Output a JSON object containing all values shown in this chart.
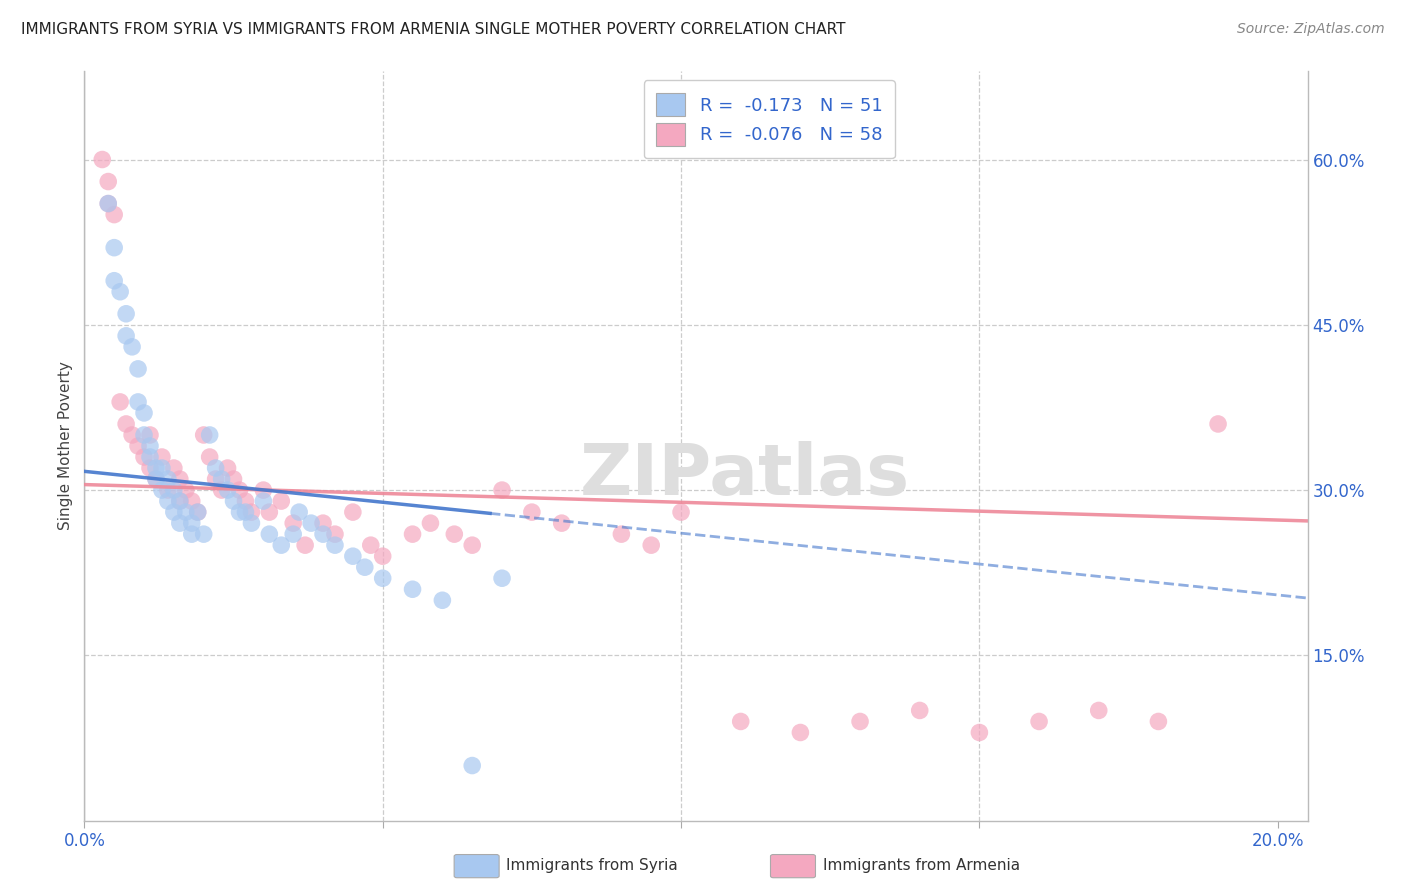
{
  "title": "IMMIGRANTS FROM SYRIA VS IMMIGRANTS FROM ARMENIA SINGLE MOTHER POVERTY CORRELATION CHART",
  "source": "Source: ZipAtlas.com",
  "ylabel": "Single Mother Poverty",
  "right_ytick_vals": [
    0.6,
    0.45,
    0.3,
    0.15
  ],
  "right_ytick_labels": [
    "60.0%",
    "45.0%",
    "30.0%",
    "15.0%"
  ],
  "xtick_vals": [
    0.0,
    0.05,
    0.1,
    0.15,
    0.2
  ],
  "xtick_labels": [
    "0.0%",
    "",
    "",
    "",
    "20.0%"
  ],
  "xlim": [
    0.0,
    0.205
  ],
  "ylim": [
    0.0,
    0.68
  ],
  "legend_text_syria": "R =  -0.173   N = 51",
  "legend_text_armenia": "R =  -0.076   N = 58",
  "legend_label_syria": "Immigrants from Syria",
  "legend_label_armenia": "Immigrants from Armenia",
  "syria_dot_color": "#a8c8f0",
  "armenia_dot_color": "#f4a8c0",
  "syria_line_color": "#4477cc",
  "armenia_line_color": "#ee8899",
  "watermark": "ZIPatlas",
  "background_color": "#ffffff",
  "grid_color": "#cccccc",
  "label_color": "#3366cc",
  "syria_x": [
    0.004,
    0.005,
    0.005,
    0.006,
    0.007,
    0.007,
    0.008,
    0.009,
    0.009,
    0.01,
    0.01,
    0.011,
    0.011,
    0.012,
    0.012,
    0.013,
    0.013,
    0.014,
    0.014,
    0.015,
    0.015,
    0.016,
    0.016,
    0.017,
    0.018,
    0.018,
    0.019,
    0.02,
    0.021,
    0.022,
    0.023,
    0.024,
    0.025,
    0.026,
    0.027,
    0.028,
    0.03,
    0.031,
    0.033,
    0.035,
    0.036,
    0.038,
    0.04,
    0.042,
    0.045,
    0.047,
    0.05,
    0.055,
    0.06,
    0.065,
    0.07
  ],
  "syria_y": [
    0.56,
    0.52,
    0.49,
    0.48,
    0.46,
    0.44,
    0.43,
    0.41,
    0.38,
    0.37,
    0.35,
    0.34,
    0.33,
    0.32,
    0.31,
    0.32,
    0.3,
    0.31,
    0.29,
    0.3,
    0.28,
    0.29,
    0.27,
    0.28,
    0.27,
    0.26,
    0.28,
    0.26,
    0.35,
    0.32,
    0.31,
    0.3,
    0.29,
    0.28,
    0.28,
    0.27,
    0.29,
    0.26,
    0.25,
    0.26,
    0.28,
    0.27,
    0.26,
    0.25,
    0.24,
    0.23,
    0.22,
    0.21,
    0.2,
    0.05,
    0.22
  ],
  "armenia_x": [
    0.003,
    0.004,
    0.004,
    0.005,
    0.006,
    0.007,
    0.008,
    0.009,
    0.01,
    0.011,
    0.011,
    0.012,
    0.013,
    0.014,
    0.015,
    0.016,
    0.016,
    0.017,
    0.018,
    0.019,
    0.02,
    0.021,
    0.022,
    0.023,
    0.024,
    0.025,
    0.026,
    0.027,
    0.028,
    0.03,
    0.031,
    0.033,
    0.035,
    0.037,
    0.04,
    0.042,
    0.045,
    0.048,
    0.05,
    0.055,
    0.058,
    0.062,
    0.065,
    0.07,
    0.075,
    0.08,
    0.09,
    0.095,
    0.1,
    0.11,
    0.12,
    0.13,
    0.14,
    0.15,
    0.16,
    0.17,
    0.18,
    0.19
  ],
  "armenia_y": [
    0.6,
    0.58,
    0.56,
    0.55,
    0.38,
    0.36,
    0.35,
    0.34,
    0.33,
    0.35,
    0.32,
    0.31,
    0.33,
    0.3,
    0.32,
    0.31,
    0.29,
    0.3,
    0.29,
    0.28,
    0.35,
    0.33,
    0.31,
    0.3,
    0.32,
    0.31,
    0.3,
    0.29,
    0.28,
    0.3,
    0.28,
    0.29,
    0.27,
    0.25,
    0.27,
    0.26,
    0.28,
    0.25,
    0.24,
    0.26,
    0.27,
    0.26,
    0.25,
    0.3,
    0.28,
    0.27,
    0.26,
    0.25,
    0.28,
    0.09,
    0.08,
    0.09,
    0.1,
    0.08,
    0.09,
    0.1,
    0.09,
    0.36
  ],
  "syria_trend_x0": 0.0,
  "syria_trend_y0": 0.317,
  "syria_trend_x1": 0.205,
  "syria_trend_y1": 0.202,
  "armenia_trend_x0": 0.0,
  "armenia_trend_y0": 0.305,
  "armenia_trend_x1": 0.205,
  "armenia_trend_y1": 0.272
}
